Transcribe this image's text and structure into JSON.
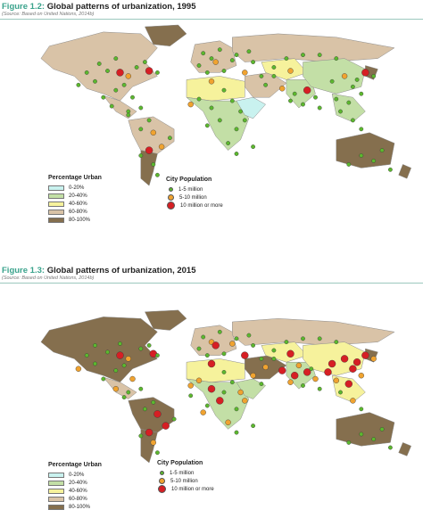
{
  "figures": [
    {
      "caption_number": "Figure 1.2:",
      "caption_title": "Global patterns of urbanization, 1995",
      "source": "(Source: Based on United Nations, 2014b)",
      "palette": [
        "#c9f2ef",
        "#c3dfa6",
        "#f6f29c",
        "#d9c3a7",
        "#856f4e"
      ],
      "regions": [
        {
          "name": "north-america",
          "cls": 3
        },
        {
          "name": "greenland",
          "cls": 4
        },
        {
          "name": "central-america",
          "cls": 3
        },
        {
          "name": "south-america",
          "cls": 3
        },
        {
          "name": "southern-cone",
          "cls": 4
        },
        {
          "name": "western-europe",
          "cls": 3
        },
        {
          "name": "russia",
          "cls": 3
        },
        {
          "name": "north-africa",
          "cls": 2
        },
        {
          "name": "sub-saharan-africa",
          "cls": 1
        },
        {
          "name": "east-africa",
          "cls": 0
        },
        {
          "name": "middle-east",
          "cls": 3
        },
        {
          "name": "central-asia",
          "cls": 2
        },
        {
          "name": "south-asia",
          "cls": 1
        },
        {
          "name": "china",
          "cls": 1
        },
        {
          "name": "southeast-asia",
          "cls": 1
        },
        {
          "name": "japan",
          "cls": 4
        },
        {
          "name": "australia",
          "cls": 4
        },
        {
          "name": "new-zealand",
          "cls": 4
        }
      ],
      "cities": [
        [
          0.23,
          0.23,
          0
        ],
        [
          0.25,
          0.27,
          0
        ],
        [
          0.27,
          0.2,
          0
        ],
        [
          0.3,
          0.3,
          1
        ],
        [
          0.32,
          0.25,
          0
        ],
        [
          0.34,
          0.22,
          0
        ],
        [
          0.29,
          0.35,
          0
        ],
        [
          0.22,
          0.33,
          0
        ],
        [
          0.2,
          0.28,
          0
        ],
        [
          0.18,
          0.35,
          0
        ],
        [
          0.27,
          0.38,
          0
        ],
        [
          0.24,
          0.42,
          0
        ],
        [
          0.26,
          0.47,
          0
        ],
        [
          0.3,
          0.5,
          0
        ],
        [
          0.33,
          0.48,
          0
        ],
        [
          0.35,
          0.55,
          0
        ],
        [
          0.33,
          0.6,
          0
        ],
        [
          0.36,
          0.62,
          1
        ],
        [
          0.4,
          0.65,
          0
        ],
        [
          0.38,
          0.7,
          1
        ],
        [
          0.35,
          0.72,
          2
        ],
        [
          0.36,
          0.8,
          0
        ],
        [
          0.37,
          0.86,
          0
        ],
        [
          0.33,
          0.75,
          0
        ],
        [
          0.3,
          0.52,
          0
        ],
        [
          0.28,
          0.28,
          2
        ],
        [
          0.35,
          0.27,
          2
        ],
        [
          0.48,
          0.17,
          0
        ],
        [
          0.5,
          0.2,
          0
        ],
        [
          0.52,
          0.15,
          0
        ],
        [
          0.47,
          0.24,
          0
        ],
        [
          0.51,
          0.22,
          1
        ],
        [
          0.55,
          0.21,
          0
        ],
        [
          0.49,
          0.28,
          0
        ],
        [
          0.53,
          0.27,
          0
        ],
        [
          0.56,
          0.18,
          0
        ],
        [
          0.59,
          0.16,
          0
        ],
        [
          0.6,
          0.22,
          0
        ],
        [
          0.58,
          0.28,
          1
        ],
        [
          0.62,
          0.3,
          0
        ],
        [
          0.65,
          0.25,
          0
        ],
        [
          0.68,
          0.2,
          0
        ],
        [
          0.72,
          0.18,
          0
        ],
        [
          0.76,
          0.18,
          0
        ],
        [
          0.8,
          0.2,
          0
        ],
        [
          0.63,
          0.35,
          0
        ],
        [
          0.67,
          0.37,
          1
        ],
        [
          0.7,
          0.4,
          0
        ],
        [
          0.73,
          0.38,
          2
        ],
        [
          0.75,
          0.42,
          0
        ],
        [
          0.72,
          0.46,
          0
        ],
        [
          0.76,
          0.48,
          0
        ],
        [
          0.69,
          0.44,
          0
        ],
        [
          0.79,
          0.33,
          0
        ],
        [
          0.82,
          0.3,
          1
        ],
        [
          0.85,
          0.32,
          0
        ],
        [
          0.87,
          0.28,
          2
        ],
        [
          0.89,
          0.3,
          0
        ],
        [
          0.84,
          0.36,
          0
        ],
        [
          0.86,
          0.4,
          0
        ],
        [
          0.83,
          0.45,
          0
        ],
        [
          0.8,
          0.43,
          0
        ],
        [
          0.81,
          0.5,
          0
        ],
        [
          0.84,
          0.55,
          0
        ],
        [
          0.86,
          0.6,
          0
        ],
        [
          0.5,
          0.33,
          1
        ],
        [
          0.53,
          0.38,
          0
        ],
        [
          0.47,
          0.43,
          0
        ],
        [
          0.5,
          0.48,
          0
        ],
        [
          0.55,
          0.44,
          0
        ],
        [
          0.57,
          0.5,
          0
        ],
        [
          0.52,
          0.55,
          0
        ],
        [
          0.49,
          0.58,
          0
        ],
        [
          0.56,
          0.6,
          0
        ],
        [
          0.58,
          0.55,
          0
        ],
        [
          0.54,
          0.68,
          0
        ],
        [
          0.56,
          0.74,
          0
        ],
        [
          0.6,
          0.7,
          0
        ],
        [
          0.45,
          0.46,
          1
        ],
        [
          0.86,
          0.75,
          0
        ],
        [
          0.89,
          0.78,
          0
        ],
        [
          0.91,
          0.72,
          0
        ],
        [
          0.83,
          0.8,
          0
        ],
        [
          0.93,
          0.83,
          0
        ],
        [
          0.37,
          0.28,
          0
        ],
        [
          0.31,
          0.42,
          0
        ],
        [
          0.65,
          0.3,
          0
        ],
        [
          0.69,
          0.27,
          1
        ]
      ]
    },
    {
      "caption_number": "Figure 1.3:",
      "caption_title": "Global patterns of urbanization, 2015",
      "source": "(Source: Based on United Nations, 2014b)",
      "palette": [
        "#c9f2ef",
        "#c3dfa6",
        "#f6f29c",
        "#d9c3a7",
        "#856f4e"
      ],
      "regions": [
        {
          "name": "north-america",
          "cls": 4
        },
        {
          "name": "greenland",
          "cls": 4
        },
        {
          "name": "central-america",
          "cls": 3
        },
        {
          "name": "south-america",
          "cls": 4
        },
        {
          "name": "southern-cone",
          "cls": 4
        },
        {
          "name": "western-europe",
          "cls": 3
        },
        {
          "name": "russia",
          "cls": 3
        },
        {
          "name": "north-africa",
          "cls": 2
        },
        {
          "name": "sub-saharan-africa",
          "cls": 1
        },
        {
          "name": "east-africa",
          "cls": 1
        },
        {
          "name": "middle-east",
          "cls": 4
        },
        {
          "name": "central-asia",
          "cls": 2
        },
        {
          "name": "south-asia",
          "cls": 1
        },
        {
          "name": "china",
          "cls": 2
        },
        {
          "name": "southeast-asia",
          "cls": 2
        },
        {
          "name": "japan",
          "cls": 4
        },
        {
          "name": "australia",
          "cls": 4
        },
        {
          "name": "new-zealand",
          "cls": 4
        }
      ],
      "cities": [
        [
          0.22,
          0.22,
          0
        ],
        [
          0.25,
          0.26,
          0
        ],
        [
          0.28,
          0.21,
          0
        ],
        [
          0.3,
          0.3,
          1
        ],
        [
          0.33,
          0.24,
          0
        ],
        [
          0.35,
          0.22,
          0
        ],
        [
          0.29,
          0.34,
          0
        ],
        [
          0.22,
          0.33,
          0
        ],
        [
          0.2,
          0.28,
          0
        ],
        [
          0.18,
          0.36,
          1
        ],
        [
          0.27,
          0.37,
          0
        ],
        [
          0.24,
          0.42,
          0
        ],
        [
          0.27,
          0.48,
          1
        ],
        [
          0.3,
          0.5,
          0
        ],
        [
          0.33,
          0.48,
          0
        ],
        [
          0.36,
          0.56,
          0
        ],
        [
          0.34,
          0.6,
          0
        ],
        [
          0.37,
          0.63,
          2
        ],
        [
          0.41,
          0.66,
          0
        ],
        [
          0.39,
          0.7,
          2
        ],
        [
          0.35,
          0.74,
          2
        ],
        [
          0.36,
          0.8,
          1
        ],
        [
          0.37,
          0.86,
          0
        ],
        [
          0.33,
          0.76,
          0
        ],
        [
          0.29,
          0.53,
          0
        ],
        [
          0.28,
          0.28,
          2
        ],
        [
          0.36,
          0.27,
          2
        ],
        [
          0.48,
          0.17,
          0
        ],
        [
          0.5,
          0.2,
          1
        ],
        [
          0.52,
          0.14,
          0
        ],
        [
          0.47,
          0.24,
          0
        ],
        [
          0.51,
          0.22,
          2
        ],
        [
          0.55,
          0.21,
          1
        ],
        [
          0.49,
          0.28,
          0
        ],
        [
          0.53,
          0.27,
          0
        ],
        [
          0.56,
          0.18,
          0
        ],
        [
          0.59,
          0.16,
          0
        ],
        [
          0.6,
          0.22,
          0
        ],
        [
          0.58,
          0.28,
          2
        ],
        [
          0.62,
          0.3,
          0
        ],
        [
          0.65,
          0.25,
          0
        ],
        [
          0.68,
          0.2,
          0
        ],
        [
          0.72,
          0.18,
          0
        ],
        [
          0.76,
          0.18,
          0
        ],
        [
          0.8,
          0.2,
          0
        ],
        [
          0.63,
          0.35,
          1
        ],
        [
          0.67,
          0.37,
          2
        ],
        [
          0.7,
          0.4,
          2
        ],
        [
          0.73,
          0.38,
          2
        ],
        [
          0.75,
          0.42,
          1
        ],
        [
          0.72,
          0.46,
          0
        ],
        [
          0.76,
          0.48,
          0
        ],
        [
          0.69,
          0.44,
          1
        ],
        [
          0.79,
          0.33,
          2
        ],
        [
          0.82,
          0.3,
          2
        ],
        [
          0.85,
          0.32,
          2
        ],
        [
          0.87,
          0.28,
          2
        ],
        [
          0.89,
          0.3,
          1
        ],
        [
          0.84,
          0.36,
          2
        ],
        [
          0.86,
          0.4,
          1
        ],
        [
          0.83,
          0.45,
          2
        ],
        [
          0.8,
          0.43,
          1
        ],
        [
          0.81,
          0.5,
          0
        ],
        [
          0.84,
          0.55,
          1
        ],
        [
          0.86,
          0.6,
          0
        ],
        [
          0.5,
          0.33,
          2
        ],
        [
          0.53,
          0.38,
          0
        ],
        [
          0.47,
          0.43,
          1
        ],
        [
          0.5,
          0.48,
          2
        ],
        [
          0.55,
          0.44,
          0
        ],
        [
          0.57,
          0.5,
          1
        ],
        [
          0.52,
          0.55,
          2
        ],
        [
          0.49,
          0.58,
          0
        ],
        [
          0.56,
          0.6,
          0
        ],
        [
          0.58,
          0.55,
          1
        ],
        [
          0.54,
          0.68,
          1
        ],
        [
          0.56,
          0.74,
          0
        ],
        [
          0.6,
          0.7,
          0
        ],
        [
          0.45,
          0.46,
          1
        ],
        [
          0.86,
          0.75,
          0
        ],
        [
          0.89,
          0.78,
          0
        ],
        [
          0.91,
          0.72,
          0
        ],
        [
          0.83,
          0.8,
          0
        ],
        [
          0.93,
          0.83,
          0
        ],
        [
          0.37,
          0.28,
          0
        ],
        [
          0.31,
          0.42,
          1
        ],
        [
          0.65,
          0.3,
          0
        ],
        [
          0.69,
          0.27,
          2
        ],
        [
          0.71,
          0.34,
          1
        ],
        [
          0.74,
          0.36,
          0
        ],
        [
          0.78,
          0.38,
          2
        ],
        [
          0.6,
          0.4,
          1
        ],
        [
          0.62,
          0.45,
          0
        ],
        [
          0.45,
          0.52,
          0
        ],
        [
          0.48,
          0.62,
          1
        ],
        [
          0.53,
          0.5,
          0
        ]
      ]
    }
  ],
  "legend": {
    "pct_title": "Percentage Urban",
    "pct_labels": [
      "0-20%",
      "20-40%",
      "40-60%",
      "60-80%",
      "80-100%"
    ],
    "city_title": "City Population",
    "city_labels": [
      "1-5 million",
      "5-10 million",
      "10 million or more"
    ],
    "city_colors": [
      "#5cb82e",
      "#f0a330",
      "#d61f24"
    ]
  }
}
